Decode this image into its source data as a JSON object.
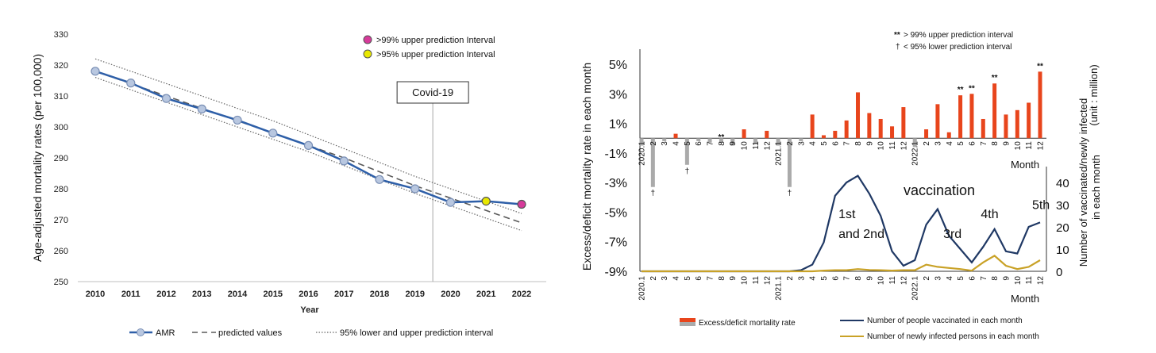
{
  "chart_data": [
    {
      "type": "line",
      "title": "",
      "xlabel": "Year",
      "ylabel": "Age-adjusted mortality rates (per 100,000)",
      "x": [
        2010,
        2011,
        2012,
        2013,
        2014,
        2015,
        2016,
        2017,
        2018,
        2019,
        2020,
        2021,
        2022
      ],
      "ylim": [
        250,
        330
      ],
      "yticks": [
        250,
        260,
        270,
        280,
        290,
        300,
        310,
        320,
        330
      ],
      "series": [
        {
          "name": "AMR",
          "style": "solid-markers",
          "color": "#2e5fa8",
          "values": [
            318,
            314.2,
            309.2,
            305.8,
            302.2,
            298,
            294,
            289,
            283,
            280,
            275.6,
            276,
            275
          ]
        },
        {
          "name": "predicted values",
          "style": "dashed",
          "color": "#5a5a5a",
          "values": [
            318,
            314,
            310,
            306,
            302,
            298,
            294,
            290,
            285.5,
            281,
            277,
            273,
            269
          ]
        },
        {
          "name": "95% lower and upper prediction interval",
          "style": "dotted",
          "color": "#666666",
          "lower": [
            316,
            312,
            308,
            304,
            300,
            296,
            292,
            287.5,
            283,
            278.5,
            274.5,
            270.5,
            266.5
          ],
          "upper": [
            322,
            318,
            314,
            310,
            306,
            302,
            297.5,
            293,
            288.5,
            284,
            280,
            276,
            272
          ]
        }
      ],
      "highlight_points": [
        {
          "x": 2021,
          "label": ">95% upper prediction Interval",
          "color": "#e8e800"
        },
        {
          "x": 2022,
          "label": ">99% upper prediction Interval",
          "color": "#d63a9a"
        }
      ],
      "annotation": {
        "label": "Covid-19",
        "x": 2019.5
      },
      "legend_position": "bottom"
    },
    {
      "type": "bar",
      "ylabel": "Excess/deficit mortality rate in each month",
      "y2label_line1": "Number of vaccinated/newly infected",
      "y2label_line2": "in each month",
      "y2label_unit": "(unit : million)",
      "xlabel_top": "Month",
      "xlabel_bottom": "Month",
      "annotation_text": "vaccination",
      "months": [
        "2020.1",
        "2",
        "3",
        "4",
        "5",
        "6",
        "7",
        "8",
        "9",
        "10",
        "11",
        "12",
        "2021.1",
        "2",
        "3",
        "4",
        "5",
        "6",
        "7",
        "8",
        "9",
        "10",
        "11",
        "12",
        "2022.1",
        "2",
        "3",
        "4",
        "5",
        "6",
        "7",
        "8",
        "9",
        "10",
        "11",
        "12"
      ],
      "ylim": [
        -9,
        6
      ],
      "yticks": [
        5,
        3,
        1,
        -1,
        -3,
        -5,
        -7,
        -9
      ],
      "ytick_labels": [
        "5%",
        "3%",
        "1%",
        "-1%",
        "-3%",
        "-5%",
        "-7%",
        "-9%"
      ],
      "excess_rate": [
        -0.5,
        -3.3,
        -0.2,
        0.3,
        -1.8,
        -0.2,
        -0.3,
        -0.3,
        -0.5,
        0.6,
        -0.4,
        0.5,
        -0.5,
        -3.3,
        -0.2,
        1.6,
        0.2,
        0.5,
        1.2,
        3.1,
        1.7,
        1.3,
        0.8,
        2.1,
        -0.6,
        0.6,
        2.3,
        0.4,
        2.9,
        3.0,
        1.3,
        3.7,
        1.6,
        1.9,
        2.4,
        4.5
      ],
      "markers_99": [
        7,
        28,
        29,
        31,
        35
      ],
      "markers_95_lower": [
        1,
        4,
        13
      ],
      "legend_99": "> 99% upper prediction interval",
      "legend_95": "< 95% lower prediction interval",
      "y2lim": [
        0,
        45
      ],
      "y2ticks": [
        0,
        10,
        20,
        30,
        40
      ],
      "vaccinated": [
        0,
        0,
        0,
        0,
        0,
        0,
        0,
        0,
        0,
        0,
        0,
        0,
        0,
        0,
        0.5,
        3,
        13,
        34,
        40,
        43,
        35,
        25,
        9,
        2.5,
        5,
        21,
        28,
        16,
        10,
        4,
        11,
        19,
        9,
        8,
        20,
        22
      ],
      "infected": [
        0,
        0,
        0,
        0,
        0,
        0,
        0,
        0,
        0,
        0,
        0,
        0,
        0,
        0,
        0,
        0,
        0.3,
        0.5,
        0.5,
        1,
        0.6,
        0.5,
        0.3,
        0.5,
        0.5,
        3,
        2,
        1.5,
        1,
        0.3,
        4,
        7,
        2.5,
        1,
        2,
        5
      ],
      "wave_labels": [
        {
          "text": "1st",
          "x_index": 17.3,
          "y2": 24
        },
        {
          "text": "and 2nd",
          "x_index": 17.3,
          "y2": 15
        },
        {
          "text": "3rd",
          "x_index": 26.5,
          "y2": 15
        },
        {
          "text": "4th",
          "x_index": 29.8,
          "y2": 24
        },
        {
          "text": "5th",
          "x_index": 34.3,
          "y2": 28
        }
      ],
      "legend": [
        {
          "name": "Excess/deficit mortality rate",
          "color_pos": "#e8451c",
          "color_neg": "#aaaaaa"
        },
        {
          "name": "Number of people vaccinated in each month",
          "color": "#1f3864"
        },
        {
          "name": "Number of newly infected persons in each month",
          "color": "#c9a227"
        }
      ]
    }
  ]
}
